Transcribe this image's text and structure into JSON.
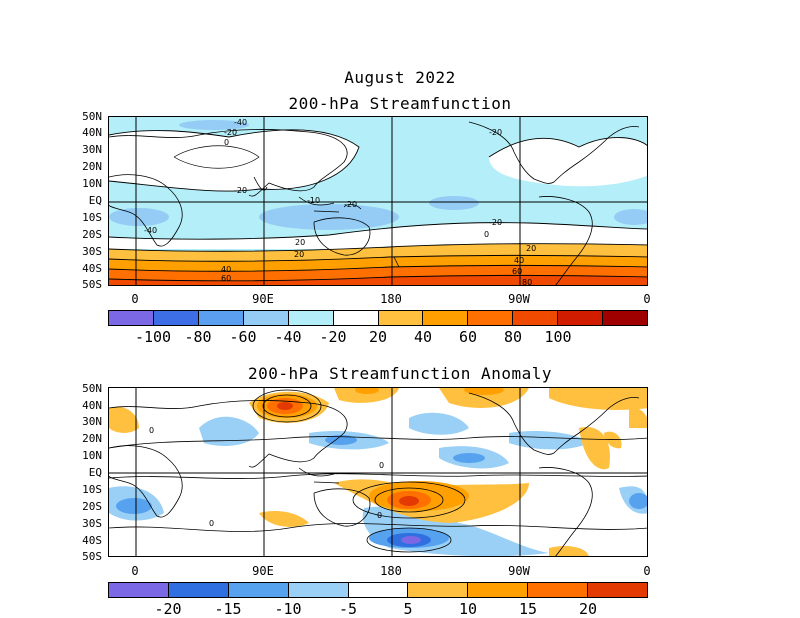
{
  "header": {
    "date_title": "August 2022",
    "top_title": "200-hPa Streamfunction",
    "bottom_title": "200-hPa Streamfunction Anomaly"
  },
  "lat_labels": [
    "50N",
    "40N",
    "30N",
    "20N",
    "10N",
    "EQ",
    "10S",
    "20S",
    "30S",
    "40S",
    "50S"
  ],
  "lon_labels": [
    "0",
    "90E",
    "180",
    "90W",
    "0"
  ],
  "top_colorbar": {
    "colors": [
      "#7b68e4",
      "#3e6ee6",
      "#5a9ff0",
      "#94ccf6",
      "#b4eef8",
      "#ffffff",
      "#ffc040",
      "#ffa000",
      "#ff7000",
      "#f04a00",
      "#d21c00",
      "#a00000"
    ],
    "labels": [
      "-100",
      "-80",
      "-60",
      "-40",
      "-20",
      "20",
      "40",
      "60",
      "80",
      "100"
    ]
  },
  "bottom_colorbar": {
    "colors": [
      "#7b68e4",
      "#2f6fe0",
      "#57a2ef",
      "#9ad0f6",
      "#ffffff",
      "#ffc040",
      "#ffa000",
      "#ff7000",
      "#e23a00"
    ],
    "labels": [
      "-20",
      "-15",
      "-10",
      "-5",
      "5",
      "10",
      "15",
      "20"
    ]
  },
  "top_contour_labels": [
    "-40",
    "-20",
    "0",
    "-20",
    "-20",
    "-40",
    "-20",
    "-20",
    "0",
    "20",
    "20",
    "40",
    "60",
    "20",
    "40",
    "60",
    "80",
    "-10"
  ],
  "bottom_contour_labels": [
    "0",
    "0",
    "0",
    "0"
  ]
}
